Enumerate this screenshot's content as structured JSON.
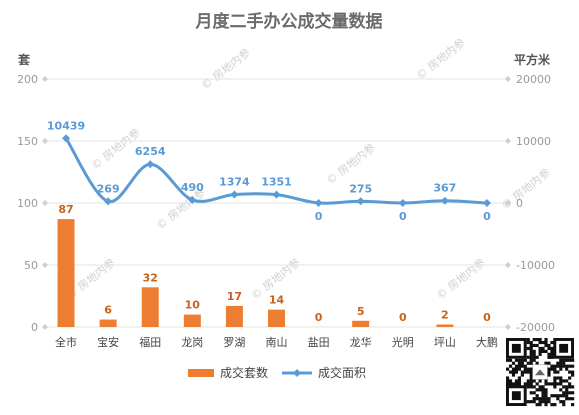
{
  "chart_data": {
    "type": "bar",
    "title": "月度二手办公成交量数据",
    "categories": [
      "全市",
      "宝安",
      "福田",
      "龙岗",
      "罗湖",
      "南山",
      "盐田",
      "龙华",
      "光明",
      "坪山",
      "大鹏"
    ],
    "series": [
      {
        "name": "成交套数",
        "type": "bar",
        "axis": "left",
        "color": "#ed7d31",
        "values": [
          87,
          6,
          32,
          10,
          17,
          14,
          0,
          5,
          0,
          2,
          0
        ]
      },
      {
        "name": "成交面积",
        "type": "line",
        "axis": "right",
        "color": "#5b9bd5",
        "values": [
          10439,
          269,
          6254,
          490,
          1374,
          1351,
          0,
          275,
          0,
          367,
          0
        ]
      }
    ],
    "left_axis": {
      "label": "套",
      "min": 0,
      "max": 200,
      "ticks": [
        0,
        50,
        100,
        150,
        200
      ]
    },
    "right_axis": {
      "label": "平方米",
      "min": -20000,
      "max": 20000,
      "ticks": [
        -20000,
        -10000,
        0,
        10000,
        20000
      ]
    },
    "grid": true,
    "legend_position": "bottom"
  },
  "watermark": "房地内参"
}
